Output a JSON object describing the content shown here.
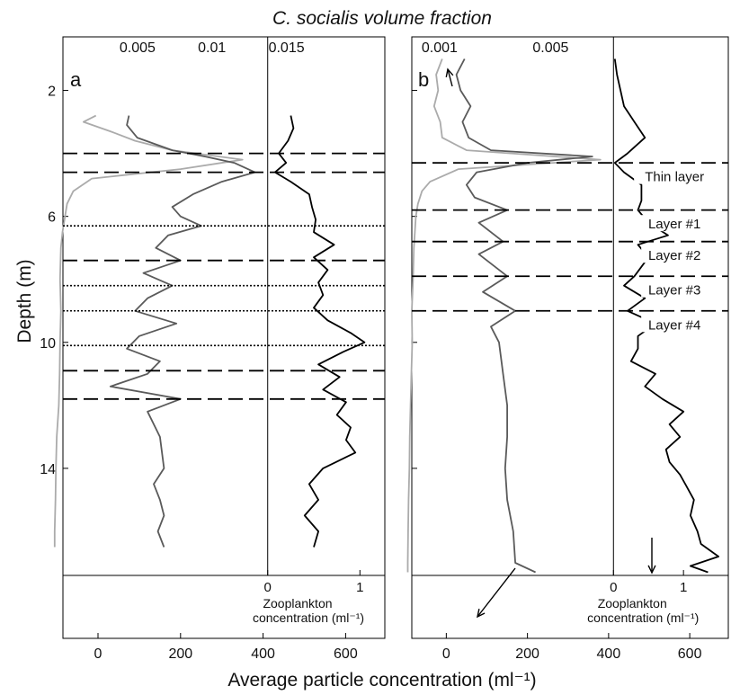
{
  "figure": {
    "top_title": "C. socialis volume fraction",
    "bottom_title": "Average particle concentration (ml⁻¹)",
    "ylabel": "Depth (m)"
  },
  "chart_data": [
    {
      "type": "line",
      "panel_label": "a",
      "y_axis": {
        "label": "Depth (m)",
        "ticks": [
          2,
          6,
          10,
          14
        ],
        "range": [
          0.3,
          17.4
        ],
        "inverted": true
      },
      "bottom_axis": {
        "ticks": [
          0,
          200,
          400,
          600
        ],
        "range": [
          -85,
          695
        ]
      },
      "top_axis": {
        "ticks": [
          "0.005",
          "0.01",
          "0.015"
        ],
        "tick_values": [
          0.005,
          0.01,
          0.015
        ],
        "range": [
          0.0,
          0.0216
        ]
      },
      "zoo_axis": {
        "label_line1": "Zooplankton",
        "label_line2": "concentration (ml⁻¹)",
        "ticks": [
          "0",
          "1"
        ],
        "tick_values": [
          0,
          1
        ],
        "range": [
          -2.22,
          1.27
        ]
      },
      "dashed_depths": [
        4.0,
        4.6,
        7.4,
        10.9,
        11.8
      ],
      "dotted_depths": [
        6.3,
        8.2,
        9.0,
        10.1
      ],
      "annotations": [],
      "series": [
        {
          "color": "#ababab",
          "axis": "bottom",
          "depth": [
            2.8,
            3.0,
            3.3,
            3.6,
            3.9,
            4.2,
            4.5,
            4.8,
            5.2,
            5.6,
            6.0,
            6.5,
            7.0,
            8.0,
            9.0,
            10.0,
            11.0,
            12.0,
            13.0,
            14.0,
            15.0,
            16.0,
            16.5
          ],
          "value": [
            -5,
            -35,
            30,
            90,
            180,
            350,
            200,
            -15,
            -60,
            -75,
            -80,
            -86,
            -90,
            -92,
            -90,
            -92,
            -93,
            -95,
            -100,
            -102,
            -103,
            -105,
            -105
          ]
        },
        {
          "color": "#5a5a5a",
          "axis": "bottom",
          "depth": [
            2.8,
            3.1,
            3.5,
            3.9,
            4.1,
            4.3,
            4.6,
            4.9,
            5.3,
            5.7,
            6.0,
            6.3,
            6.6,
            7.0,
            7.4,
            7.8,
            8.2,
            8.6,
            9.0,
            9.4,
            9.8,
            10.2,
            10.6,
            11.0,
            11.4,
            11.8,
            12.2,
            13.0,
            14.0,
            14.5,
            15.0,
            15.5,
            16.0,
            16.5
          ],
          "value": [
            75,
            70,
            95,
            180,
            260,
            330,
            380,
            300,
            230,
            180,
            200,
            250,
            170,
            140,
            200,
            110,
            180,
            120,
            90,
            190,
            100,
            70,
            150,
            120,
            30,
            200,
            120,
            150,
            160,
            135,
            150,
            160,
            145,
            160
          ]
        },
        {
          "color": "#000000",
          "axis": "zoo",
          "depth": [
            2.8,
            3.2,
            3.6,
            4.0,
            4.3,
            4.6,
            4.9,
            5.3,
            5.7,
            6.1,
            6.5,
            6.9,
            7.3,
            7.7,
            8.1,
            8.5,
            8.9,
            9.3,
            9.7,
            10.0,
            10.3,
            10.7,
            11.1,
            11.5,
            11.9,
            12.3,
            12.7,
            13.1,
            13.5,
            14.0,
            14.5,
            15.0,
            15.5,
            16.0,
            16.5
          ],
          "value": [
            0.25,
            0.28,
            0.22,
            0.12,
            0.2,
            0.08,
            0.25,
            0.45,
            0.48,
            0.52,
            0.5,
            0.72,
            0.5,
            0.65,
            0.55,
            0.6,
            0.5,
            0.65,
            0.9,
            1.05,
            0.82,
            0.55,
            0.78,
            0.6,
            0.85,
            0.75,
            0.9,
            0.85,
            0.95,
            0.6,
            0.45,
            0.55,
            0.4,
            0.55,
            0.5
          ]
        }
      ]
    },
    {
      "type": "line",
      "panel_label": "b",
      "y_axis": {
        "label": "Depth (m)",
        "ticks": [
          2,
          6,
          10,
          14
        ],
        "range": [
          0.3,
          17.4
        ],
        "inverted": true
      },
      "bottom_axis": {
        "ticks": [
          0,
          200,
          400,
          600
        ],
        "range": [
          -85,
          695
        ]
      },
      "top_axis": {
        "ticks": [
          "0.005",
          "0.001"
        ],
        "tick_values": [
          0.005,
          0.001
        ],
        "range": [
          0.0,
          0.0114
        ]
      },
      "zoo_axis": {
        "label_line1": "Zooplankton",
        "label_line2": "concentration (ml⁻¹)",
        "ticks": [
          "0",
          "1"
        ],
        "tick_values": [
          0,
          1
        ],
        "range": [
          -2.88,
          1.64
        ]
      },
      "dashed_depths": [
        4.3,
        5.8,
        6.8,
        7.9,
        9.0
      ],
      "dotted_depths": [],
      "annotations": [
        {
          "text": "Thin layer",
          "depth": 4.8
        },
        {
          "text": "Layer #1",
          "depth": 6.3
        },
        {
          "text": "Layer #2",
          "depth": 7.3
        },
        {
          "text": "Layer #3",
          "depth": 8.4
        },
        {
          "text": "Layer #4",
          "depth": 9.5
        }
      ],
      "series": [
        {
          "color": "#ababab",
          "axis": "bottom",
          "depth": [
            1.0,
            1.5,
            2.0,
            2.5,
            3.0,
            3.5,
            3.9,
            4.2,
            4.5,
            4.9,
            5.2,
            5.6,
            6.0,
            7.0,
            8.0,
            9.0,
            10.0,
            11.0,
            12.0,
            13.0,
            14.0,
            15.0,
            16.0,
            17.0,
            17.3
          ],
          "value": [
            -10,
            -25,
            -20,
            -30,
            -15,
            -10,
            50,
            380,
            30,
            -40,
            -60,
            -70,
            -75,
            -80,
            -82,
            -85,
            -84,
            -86,
            -88,
            -90,
            -91,
            -93,
            -94,
            -95,
            -95
          ]
        },
        {
          "color": "#5a5a5a",
          "axis": "bottom",
          "depth": [
            1.0,
            1.5,
            2.0,
            2.5,
            3.0,
            3.5,
            3.9,
            4.1,
            4.3,
            4.6,
            5.0,
            5.4,
            5.8,
            6.2,
            6.8,
            7.2,
            7.9,
            8.4,
            9.0,
            9.5,
            10.0,
            11.0,
            12.0,
            13.0,
            14.0,
            15.0,
            16.0,
            17.0,
            17.3
          ],
          "value": [
            45,
            25,
            35,
            60,
            40,
            55,
            110,
            360,
            200,
            75,
            50,
            70,
            150,
            80,
            140,
            80,
            150,
            90,
            170,
            110,
            130,
            140,
            150,
            150,
            145,
            150,
            165,
            170,
            220
          ]
        },
        {
          "color": "#000000",
          "axis": "zoo",
          "depth": [
            1.0,
            1.5,
            2.0,
            2.5,
            3.0,
            3.5,
            4.0,
            4.3,
            4.6,
            5.0,
            5.5,
            5.8,
            6.2,
            6.6,
            6.9,
            7.3,
            7.6,
            7.9,
            8.2,
            8.6,
            9.0,
            9.4,
            9.8,
            10.2,
            10.6,
            11.0,
            11.4,
            11.8,
            12.2,
            12.6,
            13.0,
            13.4,
            13.8,
            14.2,
            14.6,
            15.0,
            15.5,
            16.0,
            16.4,
            16.8,
            17.1,
            17.3
          ],
          "value": [
            0.02,
            0.05,
            0.1,
            0.15,
            0.3,
            0.45,
            0.2,
            0.02,
            0.15,
            0.4,
            0.4,
            0.35,
            0.5,
            0.78,
            0.35,
            0.5,
            0.4,
            0.3,
            0.15,
            0.45,
            0.2,
            0.6,
            0.35,
            0.35,
            0.25,
            0.6,
            0.45,
            0.7,
            1.0,
            0.8,
            0.95,
            0.75,
            0.8,
            0.95,
            1.05,
            1.15,
            1.1,
            1.2,
            1.25,
            1.5,
            1.1,
            1.35
          ]
        }
      ]
    }
  ]
}
